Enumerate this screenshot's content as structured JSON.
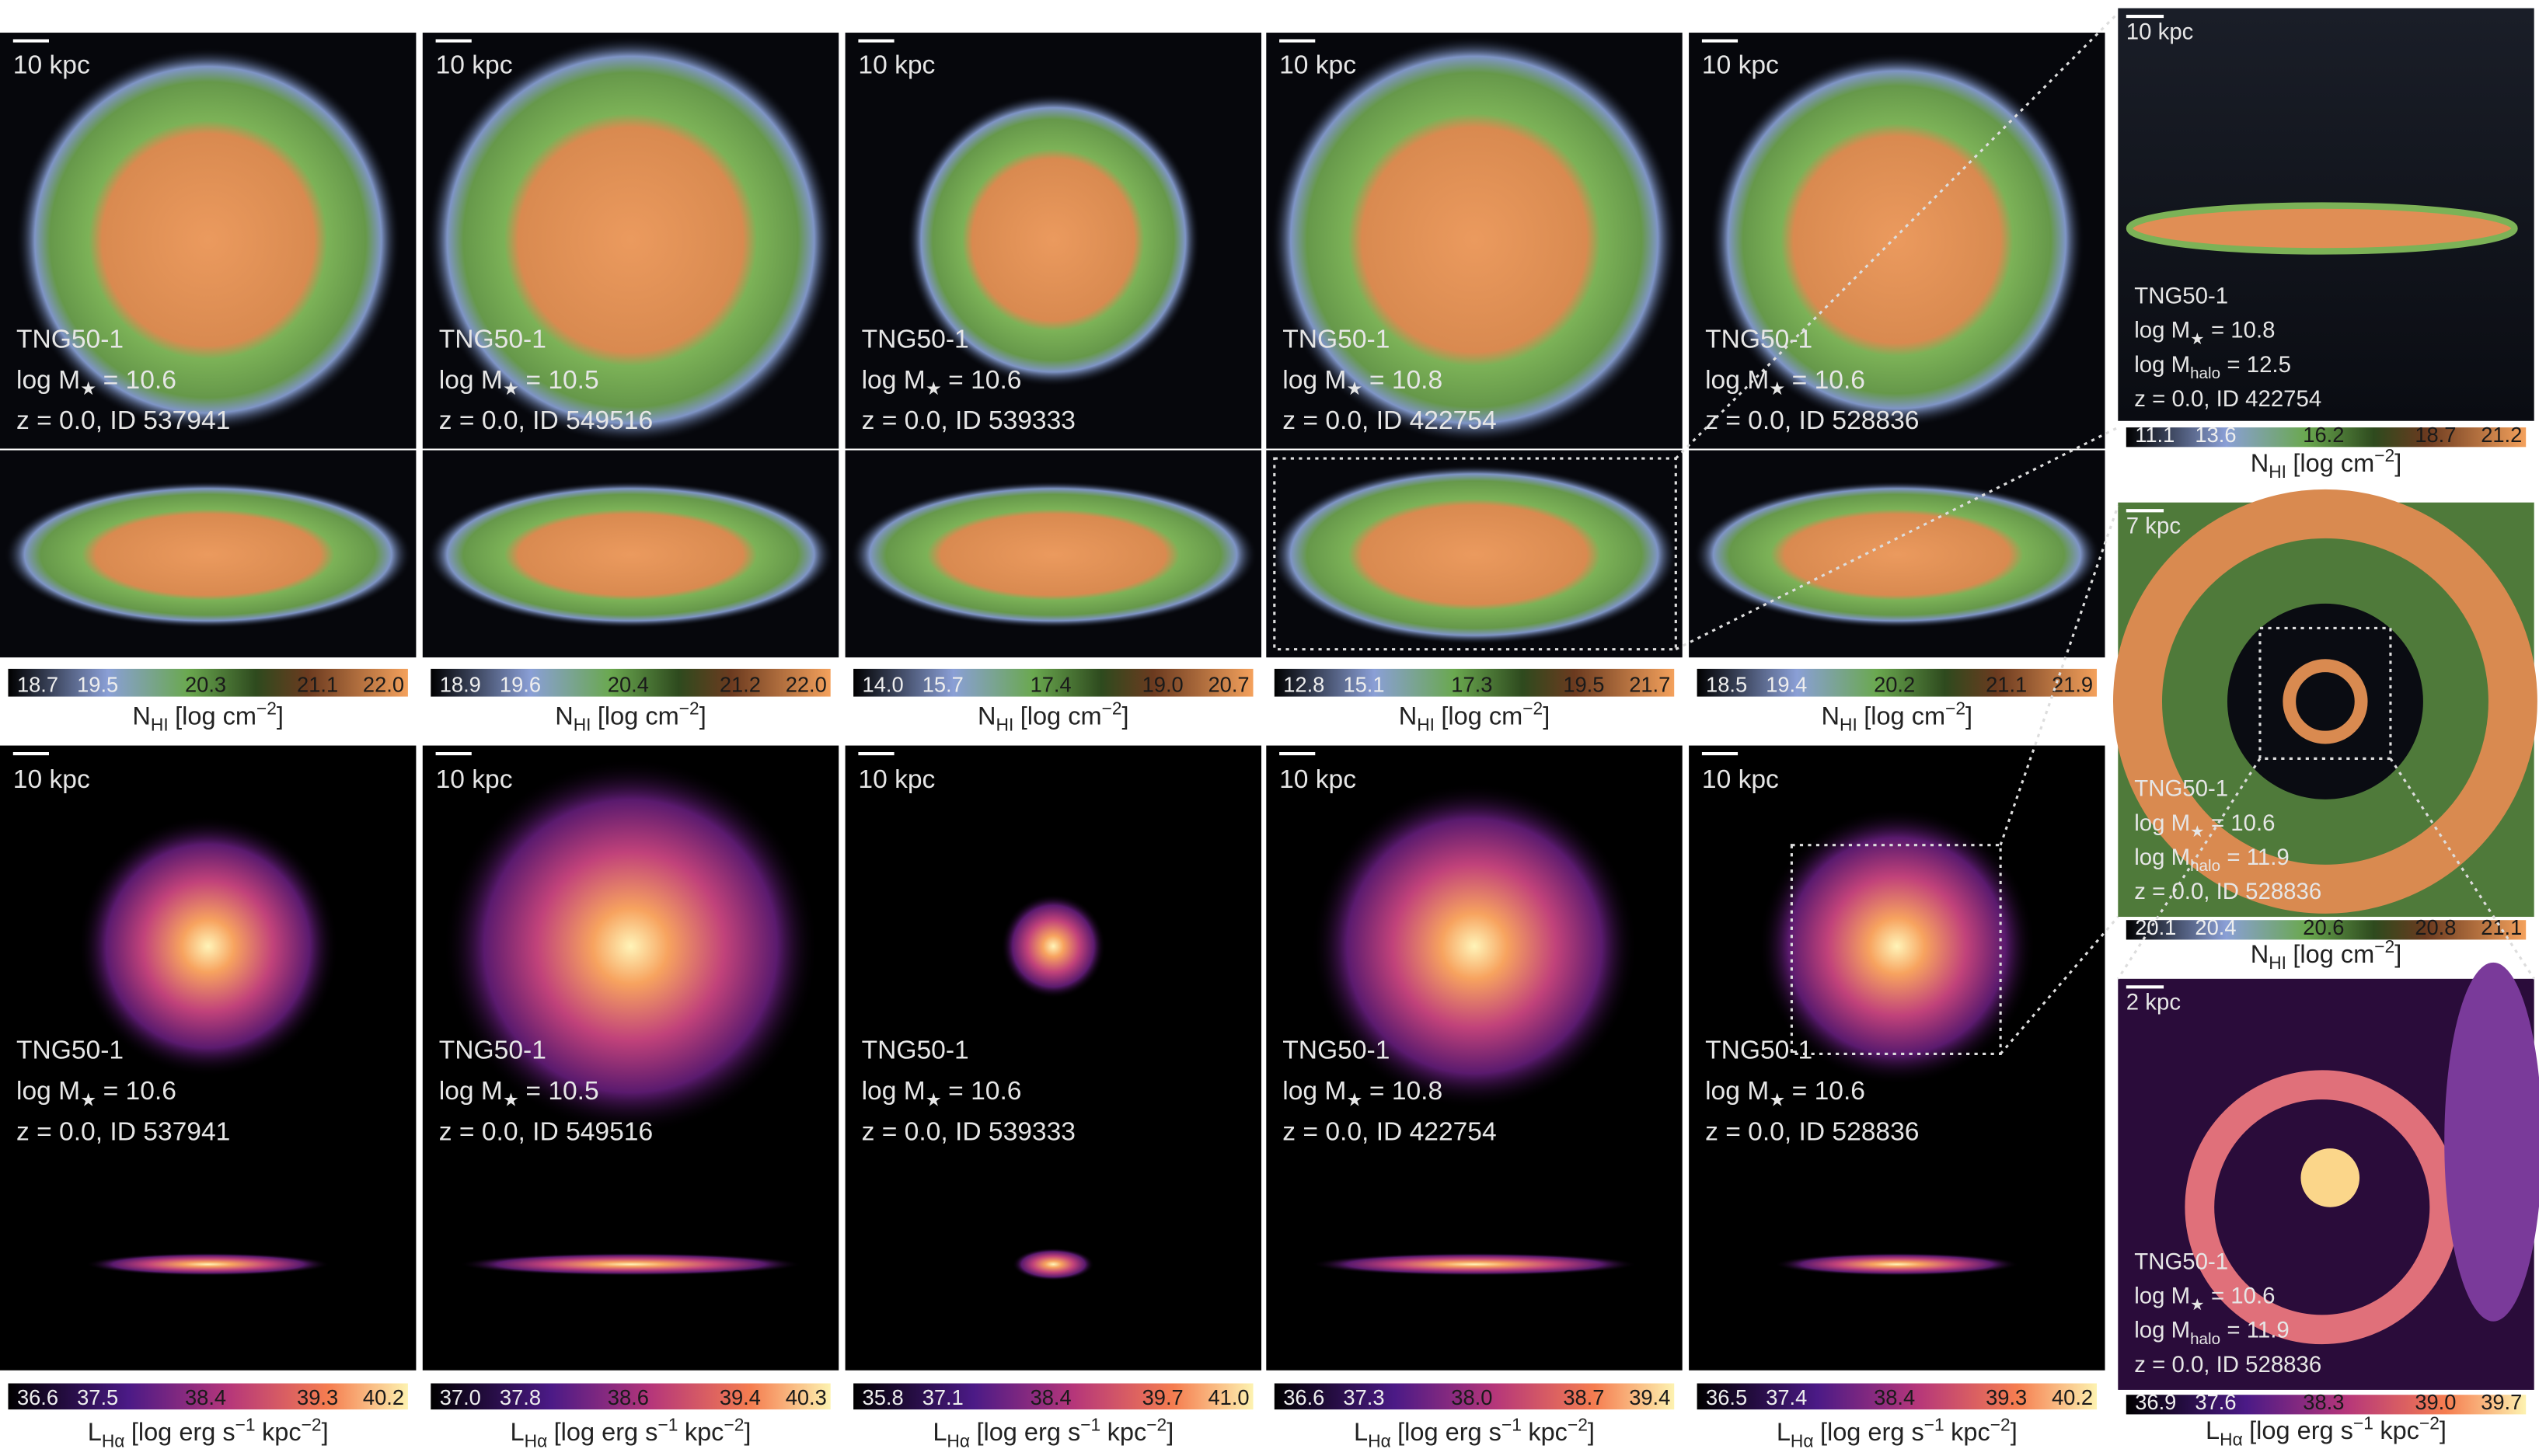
{
  "mass_symbol": {
    "text": "log M",
    "sub": "★"
  },
  "halo_symbol": {
    "text": "log M",
    "sub": "halo"
  },
  "hi_label": {
    "main": "N",
    "sub": "HI",
    "unit": "[log cm",
    "sup": "−2",
    "end": "]"
  },
  "ha_label": {
    "main": "L",
    "sub": "Hα",
    "unit": "[log erg s",
    "sup1": "−1",
    "mid": "kpc",
    "sup2": "−2",
    "end": "]"
  },
  "hi_panels": [
    {
      "scale": "10 kpc",
      "sim": "TNG50-1",
      "mstar": "= 10.6",
      "id": "z = 0.0, ID 537941",
      "ticks": [
        "18.7",
        "19.5",
        "20.3",
        "21.1",
        "22.0"
      ]
    },
    {
      "scale": "10 kpc",
      "sim": "TNG50-1",
      "mstar": "= 10.5",
      "id": "z = 0.0, ID 549516",
      "ticks": [
        "18.9",
        "19.6",
        "20.4",
        "21.2",
        "22.0"
      ]
    },
    {
      "scale": "10 kpc",
      "sim": "TNG50-1",
      "mstar": "= 10.6",
      "id": "z = 0.0, ID 539333",
      "ticks": [
        "14.0",
        "15.7",
        "17.4",
        "19.0",
        "20.7"
      ]
    },
    {
      "scale": "10 kpc",
      "sim": "TNG50-1",
      "mstar": "= 10.8",
      "id": "z = 0.0, ID 422754",
      "ticks": [
        "12.8",
        "15.1",
        "17.3",
        "19.5",
        "21.7"
      ]
    },
    {
      "scale": "10 kpc",
      "sim": "TNG50-1",
      "mstar": "= 10.6",
      "id": "z = 0.0, ID 528836",
      "ticks": [
        "18.5",
        "19.4",
        "20.2",
        "21.1",
        "21.9"
      ]
    }
  ],
  "ha_panels": [
    {
      "scale": "10 kpc",
      "sim": "TNG50-1",
      "mstar": "= 10.6",
      "id": "z = 0.0, ID 537941",
      "ticks": [
        "36.6",
        "37.5",
        "38.4",
        "39.3",
        "40.2"
      ]
    },
    {
      "scale": "10 kpc",
      "sim": "TNG50-1",
      "mstar": "= 10.5",
      "id": "z = 0.0, ID 549516",
      "ticks": [
        "37.0",
        "37.8",
        "38.6",
        "39.4",
        "40.3"
      ]
    },
    {
      "scale": "10 kpc",
      "sim": "TNG50-1",
      "mstar": "= 10.6",
      "id": "z = 0.0, ID 539333",
      "ticks": [
        "35.8",
        "37.1",
        "38.4",
        "39.7",
        "41.0"
      ]
    },
    {
      "scale": "10 kpc",
      "sim": "TNG50-1",
      "mstar": "= 10.8",
      "id": "z = 0.0, ID 422754",
      "ticks": [
        "36.6",
        "37.3",
        "38.0",
        "38.7",
        "39.4"
      ]
    },
    {
      "scale": "10 kpc",
      "sim": "TNG50-1",
      "mstar": "= 10.6",
      "id": "z = 0.0, ID 528836",
      "ticks": [
        "36.5",
        "37.4",
        "38.4",
        "39.3",
        "40.2"
      ]
    }
  ],
  "zoom_panels": [
    {
      "scale": "10 kpc",
      "sim": "TNG50-1",
      "mstar": "= 10.8",
      "mhalo": "= 12.5",
      "id": "z = 0.0, ID 422754",
      "ticks": [
        "11.1",
        "13.6",
        "16.2",
        "18.7",
        "21.2"
      ]
    },
    {
      "scale": "7 kpc",
      "sim": "TNG50-1",
      "mstar": "= 10.6",
      "mhalo": "= 11.9",
      "id": "z = 0.0, ID 528836",
      "ticks": [
        "20.1",
        "20.4",
        "20.6",
        "20.8",
        "21.1"
      ]
    },
    {
      "scale": "2 kpc",
      "sim": "TNG50-1",
      "mstar": "= 10.6",
      "mhalo": "= 11.9",
      "id": "z = 0.0, ID 528836",
      "ticks": [
        "36.9",
        "37.6",
        "38.3",
        "39.0",
        "39.7"
      ]
    }
  ]
}
